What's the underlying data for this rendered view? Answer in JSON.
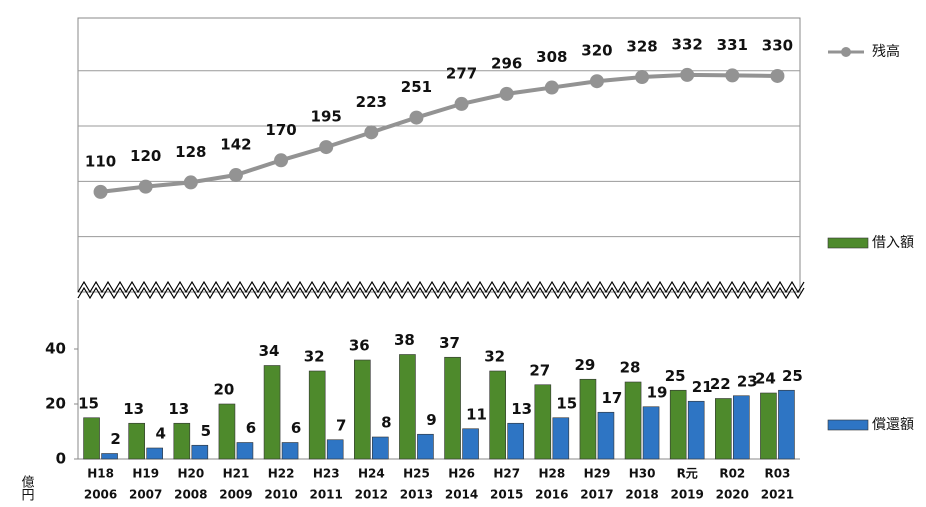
{
  "chart_data": {
    "type": "bar",
    "categories": [
      "H18",
      "H19",
      "H20",
      "H21",
      "H22",
      "H23",
      "H24",
      "H25",
      "H26",
      "H27",
      "H28",
      "H29",
      "H30",
      "R元",
      "R02",
      "R03"
    ],
    "category_years": [
      "2006",
      "2007",
      "2008",
      "2009",
      "2010",
      "2011",
      "2012",
      "2013",
      "2014",
      "2015",
      "2016",
      "2017",
      "2018",
      "2019",
      "2020",
      "2021"
    ],
    "y_axis_label": "億円",
    "ylim": [
      0,
      60
    ],
    "yticks": [
      0,
      20,
      40
    ],
    "y2lim": [
      -80,
      440
    ],
    "y2ticks": [
      25,
      130,
      235,
      340
    ],
    "grid": true,
    "series": [
      {
        "name": "残高",
        "type": "line",
        "axis": "y2",
        "color": "#939393",
        "values": [
          110,
          120,
          128,
          142,
          170,
          195,
          223,
          251,
          277,
          296,
          308,
          320,
          328,
          332,
          331,
          330
        ]
      },
      {
        "name": "借入額",
        "type": "bar",
        "color": "#4e8a2c",
        "values": [
          15,
          13,
          13,
          20,
          34,
          32,
          36,
          38,
          37,
          32,
          27,
          29,
          28,
          25,
          22,
          24
        ]
      },
      {
        "name": "償還額",
        "type": "bar",
        "color": "#2e75c4",
        "values": [
          2,
          4,
          5,
          6,
          6,
          7,
          8,
          9,
          11,
          13,
          15,
          17,
          19,
          21,
          23,
          25
        ]
      }
    ]
  }
}
